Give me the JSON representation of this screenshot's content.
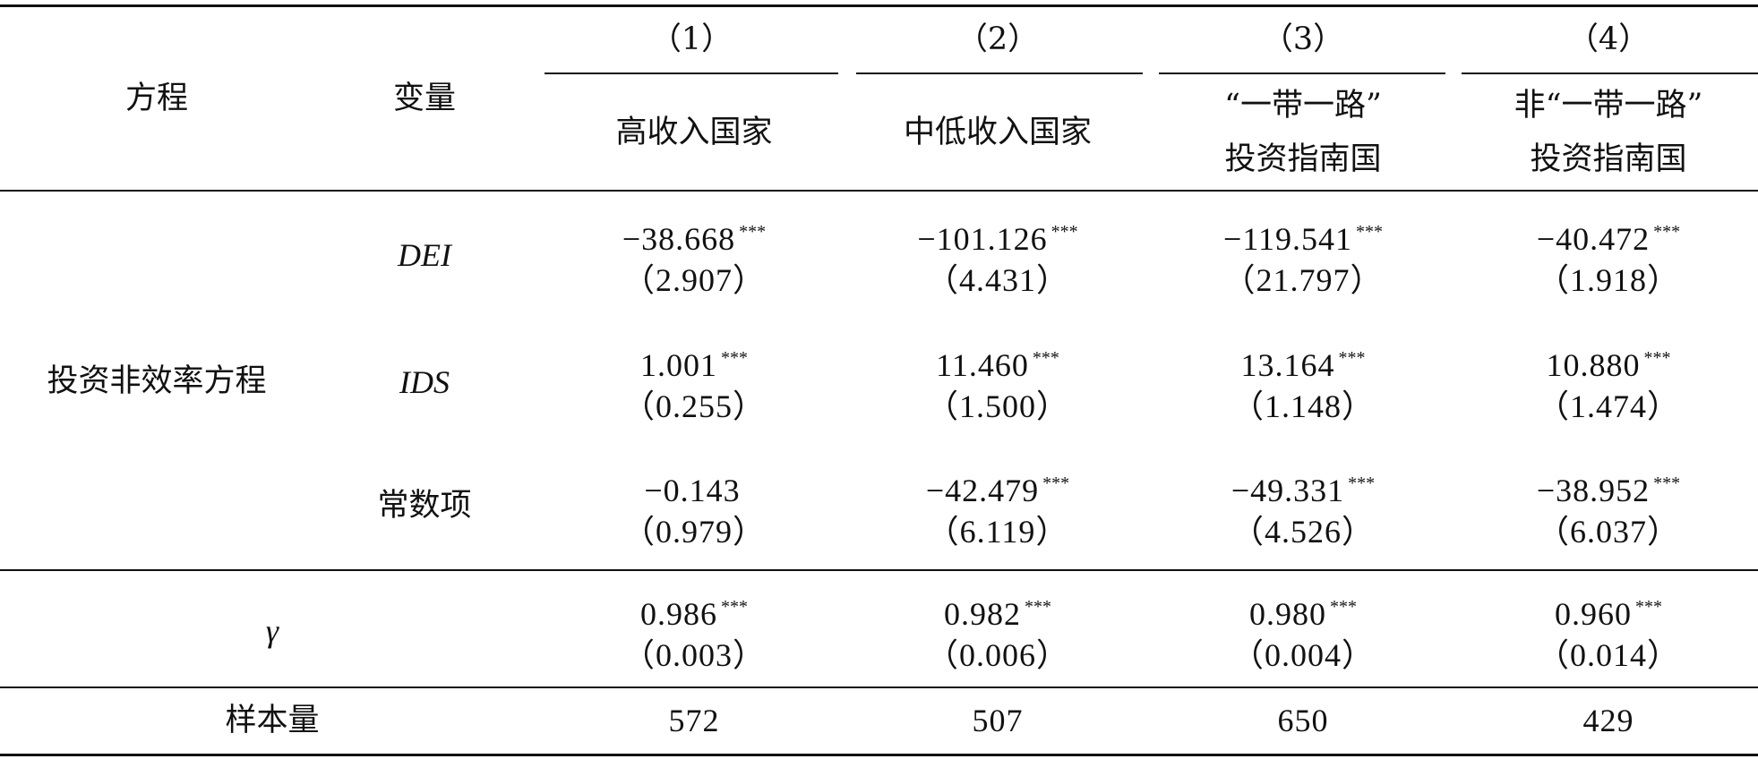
{
  "header": {
    "equation": "方程",
    "variable": "变量",
    "columns": [
      {
        "num": "（1）",
        "name": "高收入国家"
      },
      {
        "num": "（2）",
        "name": "中低收入国家"
      },
      {
        "num": "（3）",
        "name_line1": "“一带一路”",
        "name_line2": "投资指南国"
      },
      {
        "num": "（4）",
        "name_line1": "非“一带一路”",
        "name_line2": "投资指南国"
      }
    ]
  },
  "equation_block": {
    "label": "投资非效率方程",
    "rows": [
      {
        "var": "DEI",
        "coef": [
          "−38.668",
          "−101.126",
          "−119.541",
          "−40.472"
        ],
        "sig": [
          "***",
          "***",
          "***",
          "***"
        ],
        "se": [
          "（2.907）",
          "（4.431）",
          "（21.797）",
          "（1.918）"
        ]
      },
      {
        "var": "IDS",
        "coef": [
          "1.001",
          "11.460",
          "13.164",
          "10.880"
        ],
        "sig": [
          "***",
          "***",
          "***",
          "***"
        ],
        "se": [
          "（0.255）",
          "（1.500）",
          "（1.148）",
          "（1.474）"
        ]
      },
      {
        "var": "常数项",
        "coef": [
          "−0.143",
          "−42.479",
          "−49.331",
          "−38.952"
        ],
        "sig": [
          "",
          "***",
          "***",
          "***"
        ],
        "se": [
          "（0.979）",
          "（6.119）",
          "（4.526）",
          "（6.037）"
        ]
      }
    ]
  },
  "gamma_row": {
    "label": "γ",
    "coef": [
      "0.986",
      "0.982",
      "0.980",
      "0.960"
    ],
    "sig": [
      "***",
      "***",
      "***",
      "***"
    ],
    "se": [
      "（0.003）",
      "（0.006）",
      "（0.004）",
      "（0.014）"
    ]
  },
  "sample_row": {
    "label": "样本量",
    "values": [
      "572",
      "507",
      "650",
      "429"
    ]
  }
}
